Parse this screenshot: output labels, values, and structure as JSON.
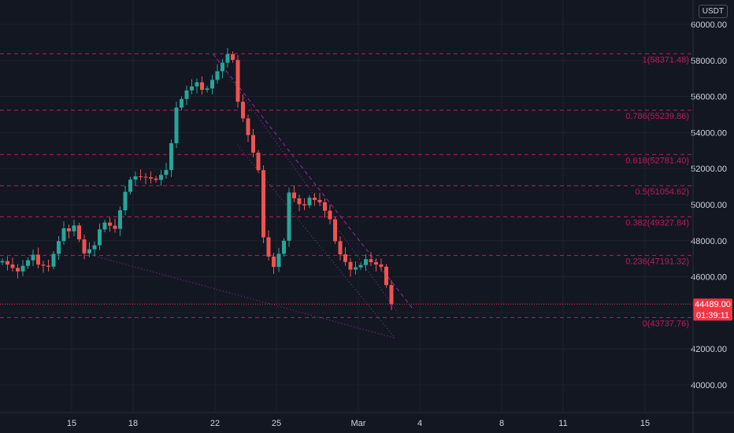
{
  "currency": "USDT",
  "price": {
    "current": "44489.00",
    "countdown": "01:39:11",
    "current_value": 44489,
    "tag_color": "#f23645"
  },
  "colors": {
    "background": "#131722",
    "grid": "#1e222d",
    "up": "#26a69a",
    "down": "#ef5350",
    "fib": "#c2185b",
    "trend": "#9c27b0",
    "axis_text": "#d1d4dc"
  },
  "y_axis": {
    "ticks": [
      "60000.00",
      "58000.00",
      "56000.00",
      "54000.00",
      "52000.00",
      "50000.00",
      "48000.00",
      "46000.00",
      "42000.00",
      "40000.00"
    ],
    "tick_values": [
      60000,
      58000,
      56000,
      54000,
      52000,
      50000,
      48000,
      46000,
      42000,
      40000
    ]
  },
  "x_axis": {
    "labels": [
      "15",
      "18",
      "22",
      "25",
      "Mar",
      "4",
      "8",
      "11",
      "15"
    ],
    "label_days": [
      15,
      18,
      22,
      25,
      29,
      32,
      36,
      39,
      43
    ]
  },
  "fib_levels": [
    {
      "label": "1(58371.48)",
      "value": 58371.48
    },
    {
      "label": "0.786(55239.86)",
      "value": 55239.86
    },
    {
      "label": "0.618(52781.40)",
      "value": 52781.4
    },
    {
      "label": "0.5(51054.62)",
      "value": 51054.62
    },
    {
      "label": "0.382(49327.84)",
      "value": 49327.84
    },
    {
      "label": "0.236(47191.32)",
      "value": 47191.32
    },
    {
      "label": "0(43737.76)",
      "value": 43737.76
    }
  ],
  "trendlines": [
    {
      "from": [
        21.9,
        58371
      ],
      "to": [
        31.7,
        44170
      ],
      "style": "dashed"
    },
    {
      "from": [
        21.9,
        58371
      ],
      "to": [
        30.9,
        44050
      ],
      "style": "dotted"
    },
    {
      "from": [
        16.3,
        47100
      ],
      "to": [
        30.8,
        42600
      ],
      "style": "dotted"
    },
    {
      "from": [
        23.1,
        53300
      ],
      "to": [
        30.8,
        42600
      ],
      "style": "dotted"
    }
  ]
}
